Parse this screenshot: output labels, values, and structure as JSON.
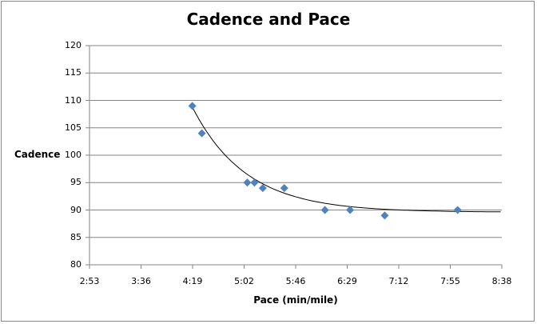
{
  "chart_data": {
    "type": "scatter",
    "title": "Cadence and Pace",
    "xlabel": "Pace (min/mile)",
    "ylabel": "Cadence",
    "ylim": [
      80,
      120
    ],
    "yticks": [
      "120",
      "115",
      "110",
      "105",
      "100",
      "95",
      "90",
      "85",
      "80"
    ],
    "xticks": [
      "2:53",
      "3:36",
      "4:19",
      "5:02",
      "5:46",
      "6:29",
      "7:12",
      "7:55",
      "8:38"
    ],
    "grid": "horizontal",
    "legend": "none",
    "trendline": "exponential decay",
    "points": [
      {
        "pace": "4:19",
        "cadence": 109
      },
      {
        "pace": "4:27",
        "cadence": 104
      },
      {
        "pace": "5:05",
        "cadence": 95
      },
      {
        "pace": "5:11",
        "cadence": 95
      },
      {
        "pace": "5:18",
        "cadence": 94
      },
      {
        "pace": "5:36",
        "cadence": 94
      },
      {
        "pace": "6:10",
        "cadence": 90
      },
      {
        "pace": "6:31",
        "cadence": 90
      },
      {
        "pace": "7:00",
        "cadence": 89
      },
      {
        "pace": "8:01",
        "cadence": 90
      }
    ],
    "marker_color": "#4F81BD"
  }
}
